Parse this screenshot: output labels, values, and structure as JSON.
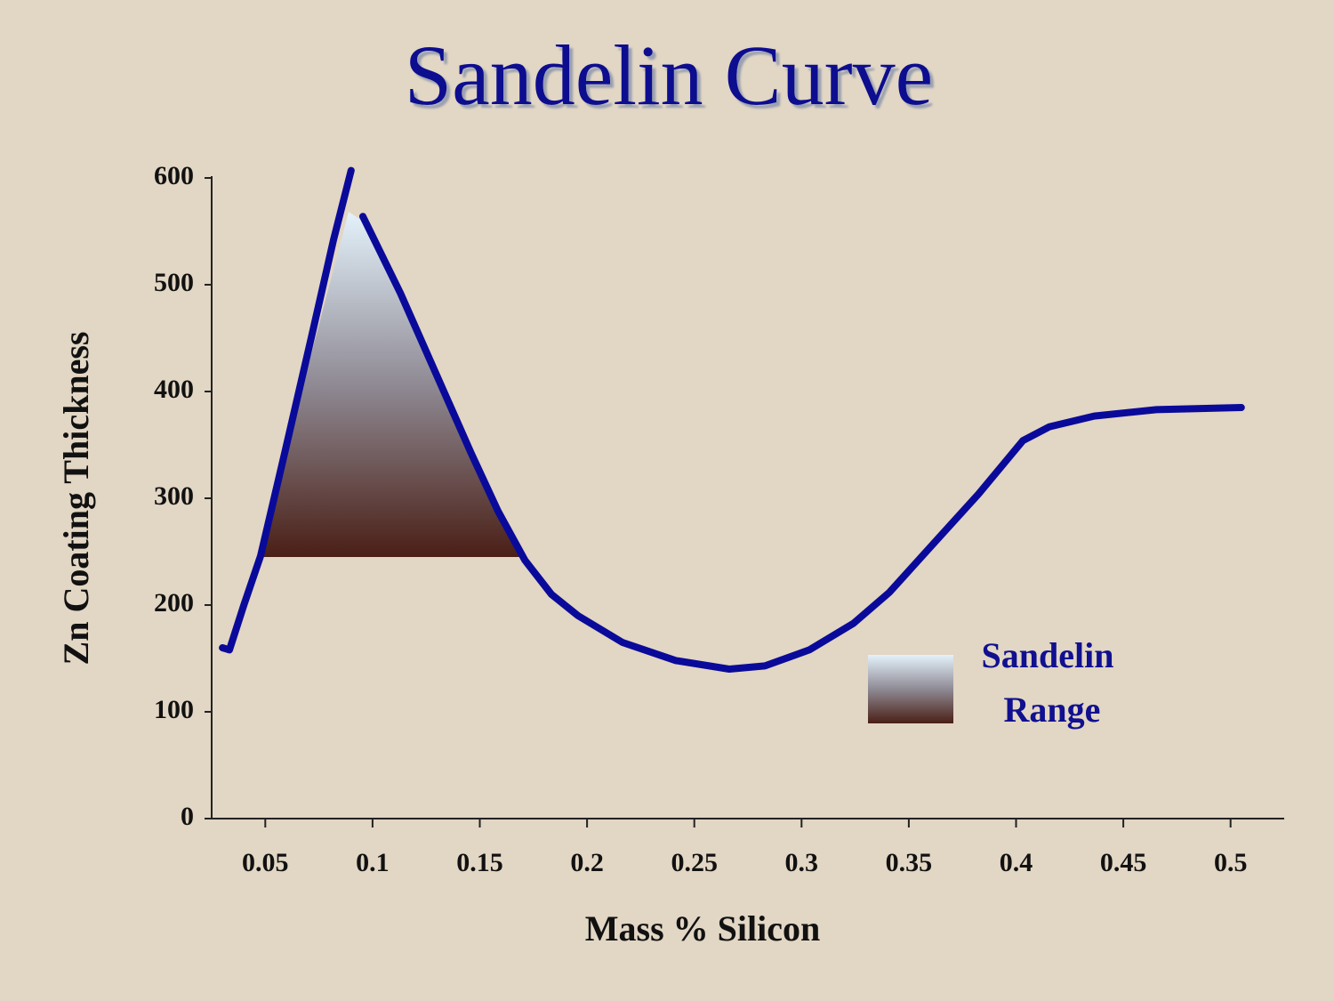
{
  "chart_data": {
    "type": "line",
    "title": "Sandelin Curve",
    "x_label": "Mass % Silicon",
    "y_label": "Zn Coating Thickness",
    "xlim": [
      0.025,
      0.525
    ],
    "xticks": [
      0.05,
      {
        "value": 0.1,
        "label": "0.1"
      },
      0.15,
      {
        "value": 0.2,
        "label": "0.2"
      },
      0.25,
      {
        "value": 0.3,
        "label": "0.3"
      },
      0.35,
      {
        "value": 0.4,
        "label": "0.4"
      },
      0.45,
      {
        "value": 0.5,
        "label": "0.5"
      }
    ],
    "ylim": [
      0,
      600
    ],
    "yticks": [
      0,
      100,
      200,
      300,
      400,
      500,
      600
    ],
    "x": [
      0.03,
      0.0333,
      0.04,
      0.0478,
      0.059,
      0.0714,
      0.0818,
      0.09,
      null,
      0.0955,
      0.113,
      0.1295,
      0.146,
      0.1585,
      0.171,
      0.1834,
      0.1958,
      0.2165,
      0.2414,
      0.2663,
      0.2829,
      0.3036,
      0.3243,
      0.341,
      0.3617,
      0.3825,
      0.4032,
      0.4156,
      0.4364,
      0.4654,
      0.505
    ],
    "series": [
      {
        "color": "#0a0a9a",
        "values": [
          160,
          158,
          200,
          246,
          342,
          450,
          542,
          607,
          null,
          564,
          492,
          417,
          342,
          288,
          242,
          210,
          190,
          165,
          148,
          140,
          143,
          158,
          183,
          212,
          258,
          304,
          354,
          367,
          377,
          383,
          385
        ]
      }
    ],
    "range_label_lines": [
      "Sandelin",
      "Range"
    ]
  }
}
